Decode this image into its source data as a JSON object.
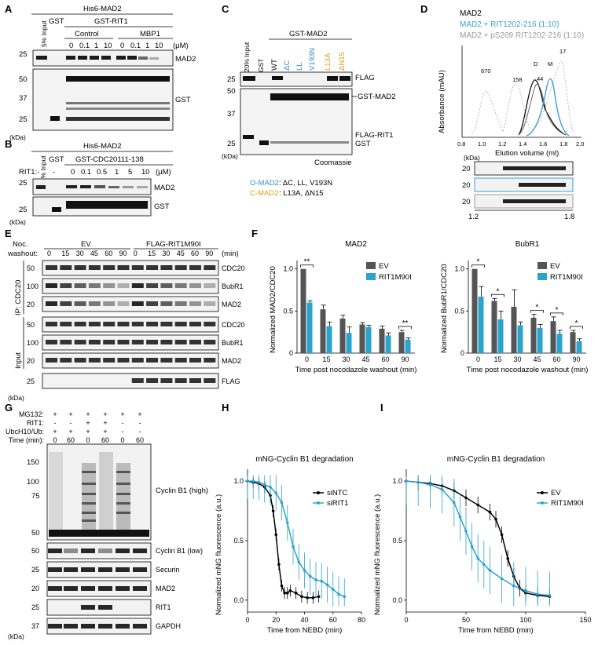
{
  "panels": {
    "A": {
      "letter": "A",
      "his": "His6-MAD2",
      "input": "5% Input",
      "gst": "GST",
      "gst_rit1": "GST-RIT1",
      "control": "Control",
      "mbp1": "MBP1",
      "conc": [
        "0",
        "0.1",
        "1",
        "10",
        "0",
        "0.1",
        "1",
        "10"
      ],
      "unit": "(μM)",
      "markers_top": [
        "25"
      ],
      "markers_bottom": [
        "50",
        "37",
        "25"
      ],
      "band_mad2": "MAD2",
      "band_gst": "GST",
      "kda": "(kDa)"
    },
    "B": {
      "letter": "B",
      "his": "His6-MAD2",
      "input": "5% Input",
      "gst": "GST",
      "gst_cdc": "GST-CDC20111-138",
      "rit1": "RIT1:",
      "conc": [
        "-",
        "-",
        "0",
        "0.1",
        "0.5",
        "1",
        "5",
        "10"
      ],
      "unit": "(μM)",
      "markers": [
        "25",
        "25"
      ],
      "band_mad2": "MAD2",
      "band_gst": "GST",
      "kda": "(kDa)"
    },
    "C": {
      "letter": "C",
      "input": "20% Input",
      "gst": "GST",
      "gst_mad2": "GST-MAD2",
      "lanes": [
        "WT",
        "ΔC",
        "LL",
        "V193N",
        "L13A",
        "ΔN15"
      ],
      "lane_colors": [
        "#000000",
        "#3a8fc4",
        "#3a8fc4",
        "#3a8fc4",
        "#e0a020",
        "#e0a020"
      ],
      "markers_top": [
        "25"
      ],
      "markers_bottom": [
        "50",
        "37",
        "25"
      ],
      "flag": "FLAG",
      "gst_mad2_band": "GST-MAD2",
      "flag_rit1": "FLAG-RIT1",
      "gst_band": "GST",
      "coomassie": "Coomassie",
      "kda": "(kDa)",
      "omad2_label": "O-MAD2",
      "omad2_desc": ": ΔC, LL, V193N",
      "cmad2_label": "C-MAD2",
      "cmad2_desc": ": L13A, ΔN15"
    },
    "D": {
      "letter": "D",
      "legend": [
        {
          "text": "MAD2",
          "color": "#000000"
        },
        {
          "text": "MAD2 + RIT1202-216 (1:10)",
          "color": "#3a9fd4"
        },
        {
          "text": "MAD2 + pS209 RIT1202-216 (1:10)",
          "color": "#999999"
        }
      ],
      "ylabel": "Absorbance (mAU)",
      "xlabel": "Elution volume (ml)",
      "markers": [
        "670",
        "158",
        "44",
        "17"
      ],
      "peak_labels": [
        "D",
        "M"
      ],
      "gel_markers": [
        "20",
        "20",
        "20"
      ],
      "gel_kda": "(kDa)",
      "gel_range": [
        "1.2",
        "1.8"
      ]
    },
    "E": {
      "letter": "E",
      "noc": "Noc.",
      "washout": "washout:",
      "ev": "EV",
      "flag_rit1": "FLAG-RIT1M90I",
      "times": [
        "0",
        "15",
        "30",
        "45",
        "60",
        "90",
        "0",
        "15",
        "30",
        "45",
        "60",
        "90"
      ],
      "unit": "(min)",
      "ip": "IP: CDC20",
      "input": "Input",
      "rows": [
        {
          "m": "50",
          "b": "CDC20"
        },
        {
          "m": "100",
          "b": "BubR1"
        },
        {
          "m": "20",
          "b": "MAD2"
        },
        {
          "m": "50",
          "b": "CDC20"
        },
        {
          "m": "100",
          "b": "BubR1"
        },
        {
          "m": "20",
          "b": "MAD2"
        },
        {
          "m": "25",
          "b": "FLAG"
        }
      ],
      "kda": "(kDa)"
    },
    "F": {
      "letter": "F"
    },
    "G": {
      "letter": "G",
      "rows": [
        {
          "label": "MG132:",
          "v": [
            "+",
            "+",
            "+",
            "+",
            "+",
            "+"
          ]
        },
        {
          "label": "RIT1:",
          "v": [
            "-",
            "-",
            "+",
            "+",
            "-",
            "-"
          ]
        },
        {
          "label": "UbcH10/Ub:",
          "v": [
            "+",
            "+",
            "+",
            "+",
            "-",
            "-"
          ]
        },
        {
          "label": "Time (min):",
          "v": [
            "0",
            "60",
            "0",
            "60",
            "0",
            "60"
          ]
        }
      ],
      "markers_high": [
        "150",
        "100",
        "75",
        "50"
      ],
      "blots": [
        {
          "m": "50",
          "b": "Cyclin B1 (low)"
        },
        {
          "m": "25",
          "b": "Securin"
        },
        {
          "m": "20",
          "b": "MAD2"
        },
        {
          "m": "25",
          "b": "RIT1"
        },
        {
          "m": "37",
          "b": "GAPDH"
        }
      ],
      "high_band": "Cyclin B1 (high)",
      "kda": "(kDa)"
    },
    "H": {
      "letter": "H"
    },
    "I": {
      "letter": "I"
    }
  },
  "chart_data": [
    {
      "type": "bar",
      "panel": "F-MAD2",
      "title": "MAD2",
      "xlabel": "Time post nocodazole washout (min)",
      "ylabel": "Normalized MAD2/CDC20",
      "categories": [
        "0",
        "15",
        "30",
        "45",
        "60",
        "90"
      ],
      "series": [
        {
          "name": "EV",
          "color": "#555555",
          "values": [
            1.0,
            0.52,
            0.41,
            0.34,
            0.29,
            0.25
          ]
        },
        {
          "name": "RIT1M90I",
          "color": "#2aa3cf",
          "values": [
            0.6,
            0.32,
            0.24,
            0.31,
            0.21,
            0.16
          ]
        }
      ],
      "errors_ev": [
        0.0,
        0.05,
        0.04,
        0.02,
        0.03,
        0.02
      ],
      "errors_rit": [
        0.02,
        0.05,
        0.07,
        0.02,
        0.03,
        0.02
      ],
      "yticks": [
        "0",
        "0.5",
        "1.0"
      ],
      "ylim": [
        0,
        1.1
      ],
      "sig": [
        {
          "cat": 0,
          "text": "**"
        },
        {
          "cat": 5,
          "text": "**"
        }
      ]
    },
    {
      "type": "bar",
      "panel": "F-BubR1",
      "title": "BubR1",
      "xlabel": "Time post nocodazole washout (min)",
      "ylabel": "Normalized BubR1/CDC20",
      "categories": [
        "0",
        "15",
        "30",
        "45",
        "60",
        "90"
      ],
      "series": [
        {
          "name": "EV",
          "color": "#555555",
          "values": [
            1.0,
            0.62,
            0.55,
            0.42,
            0.38,
            0.25
          ]
        },
        {
          "name": "RIT1M90I",
          "color": "#2aa3cf",
          "values": [
            0.67,
            0.4,
            0.33,
            0.3,
            0.23,
            0.14
          ]
        }
      ],
      "errors_ev": [
        0.0,
        0.03,
        0.2,
        0.04,
        0.05,
        0.02
      ],
      "errors_rit": [
        0.12,
        0.1,
        0.04,
        0.04,
        0.04,
        0.03
      ],
      "yticks": [
        "0",
        "0.5",
        "1.0"
      ],
      "ylim": [
        0,
        1.1
      ],
      "sig": [
        {
          "cat": 0,
          "text": "*"
        },
        {
          "cat": 1,
          "text": "*"
        },
        {
          "cat": 3,
          "text": "*"
        },
        {
          "cat": 4,
          "text": "*"
        },
        {
          "cat": 5,
          "text": "*"
        }
      ]
    },
    {
      "type": "line",
      "panel": "H",
      "title": "mNG-Cyclin B1 degradation",
      "xlabel": "Time from NEBD (min)",
      "ylabel": "Normalized mNG fluorescence (a.u.)",
      "xlim": [
        0,
        80
      ],
      "ylim": [
        -0.1,
        1.1
      ],
      "xticks": [
        "0",
        "20",
        "40",
        "60",
        "80"
      ],
      "yticks": [
        "0.0",
        "0.5",
        "1.0"
      ],
      "series": [
        {
          "name": "siNTC",
          "color": "#000000",
          "x": [
            0,
            4,
            8,
            12,
            16,
            18,
            20,
            22,
            24,
            26,
            28,
            30,
            34,
            38,
            42,
            46,
            50
          ],
          "y": [
            1.0,
            0.99,
            0.98,
            0.95,
            0.88,
            0.75,
            0.55,
            0.3,
            0.12,
            0.06,
            0.06,
            0.08,
            0.06,
            0.03,
            0.02,
            0.02,
            0.03
          ],
          "err": 0.05
        },
        {
          "name": "siRIT1",
          "color": "#2aa3cf",
          "x": [
            0,
            4,
            8,
            12,
            16,
            20,
            24,
            28,
            32,
            36,
            40,
            44,
            48,
            52,
            56,
            60,
            64,
            68
          ],
          "y": [
            1.0,
            1.0,
            0.99,
            0.97,
            0.95,
            0.9,
            0.82,
            0.65,
            0.45,
            0.32,
            0.25,
            0.2,
            0.17,
            0.16,
            0.13,
            0.09,
            0.05,
            0.03
          ],
          "err": 0.15
        }
      ]
    },
    {
      "type": "line",
      "panel": "I",
      "title": "mNG-Cyclin B1 degradation",
      "xlabel": "Time from NEBD (min)",
      "ylabel": "Normalized mNG fluorescence (a.u.)",
      "xlim": [
        0,
        150
      ],
      "ylim": [
        -0.1,
        1.1
      ],
      "xticks": [
        "0",
        "50",
        "100",
        "150"
      ],
      "yticks": [
        "0.0",
        "0.5",
        "1.0"
      ],
      "series": [
        {
          "name": "EV",
          "color": "#000000",
          "x": [
            0,
            10,
            20,
            30,
            40,
            50,
            60,
            70,
            75,
            80,
            85,
            90,
            95,
            100,
            110,
            120
          ],
          "y": [
            1.0,
            0.99,
            0.98,
            0.96,
            0.92,
            0.86,
            0.8,
            0.74,
            0.68,
            0.55,
            0.35,
            0.2,
            0.1,
            0.06,
            0.04,
            0.03
          ],
          "err": 0.07
        },
        {
          "name": "RIT1M90I",
          "color": "#2aa3cf",
          "x": [
            0,
            10,
            20,
            30,
            40,
            45,
            50,
            55,
            60,
            65,
            70,
            80,
            90,
            100,
            110,
            120
          ],
          "y": [
            1.0,
            0.99,
            0.97,
            0.93,
            0.82,
            0.7,
            0.58,
            0.45,
            0.35,
            0.3,
            0.25,
            0.18,
            0.12,
            0.08,
            0.05,
            0.04
          ],
          "err": 0.2
        }
      ]
    }
  ]
}
